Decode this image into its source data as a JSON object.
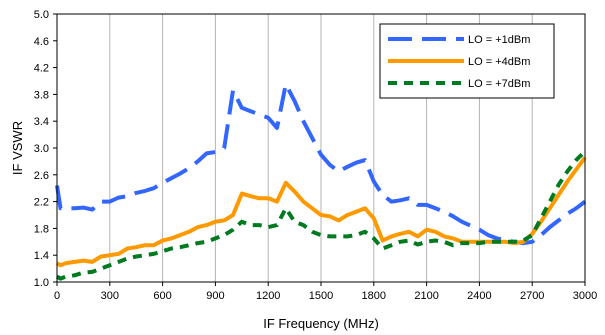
{
  "chart_data": {
    "type": "line",
    "title": "",
    "xlabel": "IF Frequency (MHz)",
    "ylabel": "IF VSWR",
    "xlim": [
      0,
      3000
    ],
    "ylim": [
      1.0,
      5.0
    ],
    "xticks": [
      "0",
      "300",
      "600",
      "900",
      "1200",
      "1500",
      "1800",
      "2100",
      "2400",
      "2700",
      "3000"
    ],
    "yticks": [
      "1.0",
      "1.4",
      "1.8",
      "2.2",
      "2.6",
      "3.0",
      "3.4",
      "3.8",
      "4.2",
      "4.6",
      "5.0"
    ],
    "grid": "vertical",
    "legend_position": "top-right",
    "series": [
      {
        "name": "LO = +1dBm",
        "color": "#3366ff",
        "style": "long-dash",
        "x": [
          0,
          20,
          50,
          100,
          150,
          200,
          250,
          300,
          350,
          400,
          450,
          500,
          550,
          600,
          650,
          700,
          750,
          800,
          850,
          900,
          950,
          1000,
          1050,
          1100,
          1150,
          1200,
          1250,
          1300,
          1350,
          1400,
          1450,
          1500,
          1550,
          1600,
          1650,
          1700,
          1750,
          1800,
          1850,
          1900,
          1950,
          2000,
          2050,
          2100,
          2150,
          2200,
          2250,
          2300,
          2350,
          2400,
          2450,
          2500,
          2550,
          2600,
          2650,
          2700,
          2750,
          2800,
          2850,
          2900,
          2950,
          3000
        ],
        "values": [
          2.44,
          2.1,
          2.1,
          2.1,
          2.11,
          2.08,
          2.2,
          2.2,
          2.26,
          2.28,
          2.33,
          2.36,
          2.4,
          2.48,
          2.55,
          2.62,
          2.7,
          2.8,
          2.92,
          2.94,
          3.0,
          3.86,
          3.6,
          3.55,
          3.5,
          3.45,
          3.3,
          3.95,
          3.7,
          3.4,
          3.15,
          2.9,
          2.75,
          2.65,
          2.72,
          2.78,
          2.82,
          2.5,
          2.3,
          2.2,
          2.22,
          2.25,
          2.15,
          2.15,
          2.1,
          2.05,
          1.98,
          1.9,
          1.84,
          1.78,
          1.7,
          1.65,
          1.62,
          1.6,
          1.58,
          1.6,
          1.7,
          1.82,
          1.92,
          2.02,
          2.1,
          2.2
        ]
      },
      {
        "name": "LO = +4dBm",
        "color": "#ff9900",
        "style": "solid",
        "x": [
          0,
          20,
          50,
          100,
          150,
          200,
          250,
          300,
          350,
          400,
          450,
          500,
          550,
          600,
          650,
          700,
          750,
          800,
          850,
          900,
          950,
          1000,
          1050,
          1100,
          1150,
          1200,
          1250,
          1300,
          1350,
          1400,
          1450,
          1500,
          1550,
          1600,
          1650,
          1700,
          1750,
          1800,
          1850,
          1900,
          1950,
          2000,
          2050,
          2100,
          2150,
          2200,
          2250,
          2300,
          2350,
          2400,
          2450,
          2500,
          2550,
          2600,
          2650,
          2700,
          2750,
          2800,
          2850,
          2900,
          2950,
          3000
        ],
        "values": [
          1.28,
          1.25,
          1.28,
          1.3,
          1.32,
          1.3,
          1.38,
          1.4,
          1.42,
          1.5,
          1.52,
          1.55,
          1.55,
          1.62,
          1.65,
          1.7,
          1.75,
          1.82,
          1.85,
          1.9,
          1.92,
          2.0,
          2.32,
          2.28,
          2.25,
          2.25,
          2.2,
          2.48,
          2.35,
          2.2,
          2.1,
          2.0,
          1.98,
          1.92,
          2.0,
          2.05,
          2.1,
          1.95,
          1.62,
          1.68,
          1.72,
          1.75,
          1.68,
          1.78,
          1.75,
          1.68,
          1.65,
          1.6,
          1.6,
          1.6,
          1.6,
          1.6,
          1.6,
          1.58,
          1.6,
          1.72,
          1.9,
          2.1,
          2.3,
          2.5,
          2.68,
          2.86
        ]
      },
      {
        "name": "LO = +7dBm",
        "color": "#007a1f",
        "style": "short-dash",
        "x": [
          0,
          20,
          50,
          100,
          150,
          200,
          250,
          300,
          350,
          400,
          450,
          500,
          550,
          600,
          650,
          700,
          750,
          800,
          850,
          900,
          950,
          1000,
          1050,
          1100,
          1150,
          1200,
          1250,
          1300,
          1350,
          1400,
          1450,
          1500,
          1550,
          1600,
          1650,
          1700,
          1750,
          1800,
          1850,
          1900,
          1950,
          2000,
          2050,
          2100,
          2150,
          2200,
          2250,
          2300,
          2350,
          2400,
          2450,
          2500,
          2550,
          2600,
          2650,
          2700,
          2750,
          2800,
          2850,
          2900,
          2950,
          3000
        ],
        "values": [
          1.08,
          1.05,
          1.08,
          1.1,
          1.14,
          1.15,
          1.2,
          1.25,
          1.3,
          1.35,
          1.38,
          1.4,
          1.42,
          1.46,
          1.5,
          1.52,
          1.55,
          1.58,
          1.6,
          1.65,
          1.7,
          1.78,
          1.9,
          1.85,
          1.85,
          1.82,
          1.85,
          2.1,
          1.9,
          1.85,
          1.75,
          1.7,
          1.68,
          1.68,
          1.68,
          1.7,
          1.75,
          1.65,
          1.5,
          1.55,
          1.6,
          1.62,
          1.56,
          1.6,
          1.62,
          1.6,
          1.55,
          1.58,
          1.58,
          1.58,
          1.6,
          1.6,
          1.6,
          1.6,
          1.62,
          1.7,
          1.95,
          2.2,
          2.45,
          2.65,
          2.82,
          2.95
        ]
      }
    ]
  }
}
